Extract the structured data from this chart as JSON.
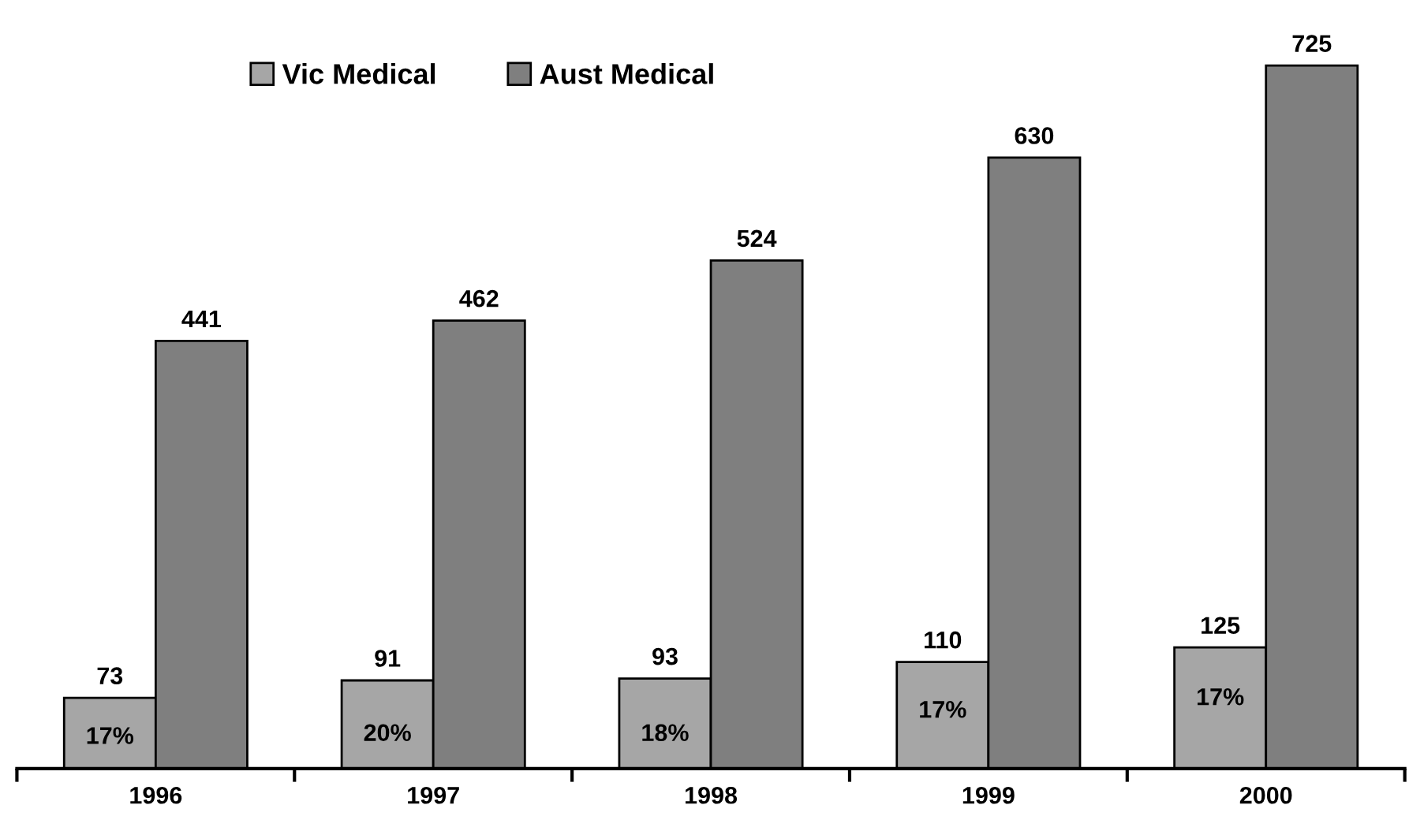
{
  "chart_data": {
    "type": "bar",
    "categories": [
      "1996",
      "1997",
      "1998",
      "1999",
      "2000"
    ],
    "series": [
      {
        "name": "Vic Medical",
        "color": "#a6a6a6",
        "values": [
          73,
          91,
          93,
          110,
          125
        ]
      },
      {
        "name": "Aust Medical",
        "color": "#7f7f7f",
        "values": [
          441,
          462,
          524,
          630,
          725
        ]
      }
    ],
    "data_labels": true,
    "legend": "top left",
    "grid": false,
    "annotations": [
      {
        "text": "17%",
        "x": "1996",
        "y": 32
      },
      {
        "text": "20%",
        "x": "1997",
        "y": 35
      },
      {
        "text": "18%",
        "x": "1998",
        "y": 35
      },
      {
        "text": "17%",
        "x": "1999",
        "y": 59
      },
      {
        "text": "17%",
        "x": "2000",
        "y": 72
      }
    ]
  }
}
